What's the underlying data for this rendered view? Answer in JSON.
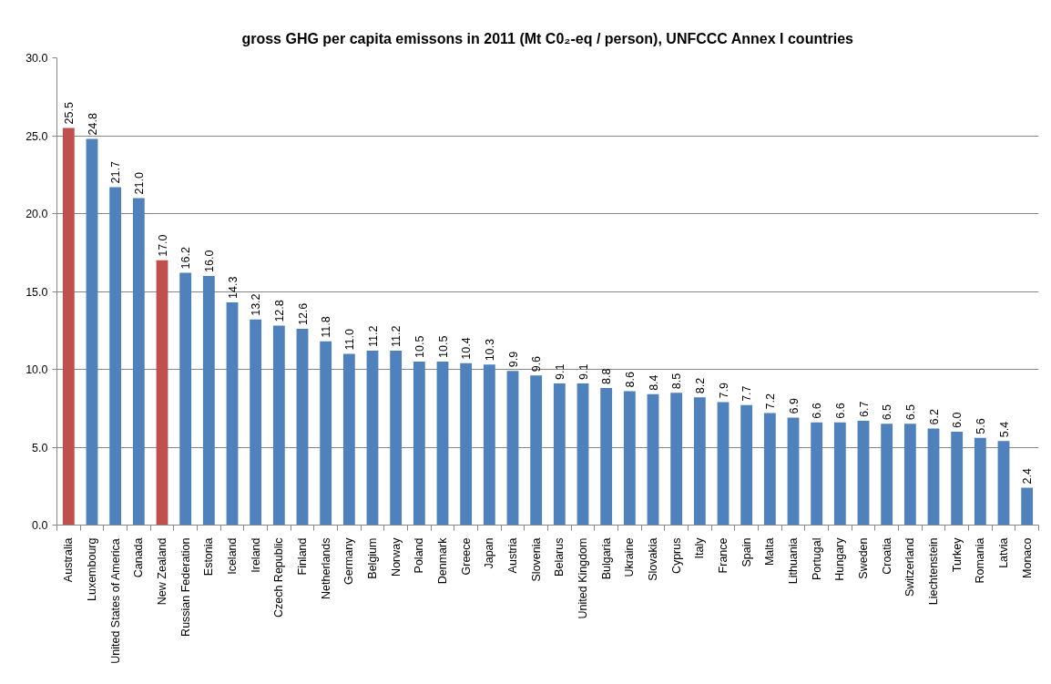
{
  "chart_data": {
    "type": "bar",
    "title": "gross GHG per capita emissons in 2011 (Mt C0₂-eq / person), UNFCCC Annex I countries",
    "categories": [
      "Australia",
      "Luxembourg",
      "United States of America",
      "Canada",
      "New Zealand",
      "Russian Federation",
      "Estonia",
      "Iceland",
      "Ireland",
      "Czech Republic",
      "Finland",
      "Netherlands",
      "Germany",
      "Belgium",
      "Norway",
      "Poland",
      "Denmark",
      "Greece",
      "Japan",
      "Austria",
      "Slovenia",
      "Belarus",
      "United Kingdom",
      "Bulgaria",
      "Ukraine",
      "Slovakia",
      "Cyprus",
      "Italy",
      "France",
      "Spain",
      "Malta",
      "Lithuania",
      "Portugal",
      "Hungary",
      "Sweden",
      "Croatia",
      "Switzerland",
      "Liechtenstein",
      "Turkey",
      "Romania",
      "Latvia",
      "Monaco"
    ],
    "values": [
      25.5,
      24.8,
      21.7,
      21,
      17,
      16.2,
      16,
      14.3,
      13.2,
      12.8,
      12.6,
      11.8,
      11,
      11.2,
      11.2,
      10.5,
      10.5,
      10.4,
      10.3,
      9.9,
      9.6,
      9.1,
      9.1,
      8.8,
      8.6,
      8.4,
      8.5,
      8.2,
      7.9,
      7.7,
      7.2,
      6.9,
      6.6,
      6.6,
      6.7,
      6.5,
      6.5,
      6.2,
      6,
      5.6,
      5.4,
      2.4
    ],
    "value_labels": [
      "25.5",
      "24.8",
      "21.7",
      "21.0",
      "17.0",
      "16.2",
      "16.0",
      "14.3",
      "13.2",
      "12.8",
      "12.6",
      "11.8",
      "11.0",
      "11.2",
      "11.2",
      "10.5",
      "10.5",
      "10.4",
      "10.3",
      "9.9",
      "9.6",
      "9.1",
      "9.1",
      "8.8",
      "8.6",
      "8.4",
      "8.5",
      "8.2",
      "7.9",
      "7.7",
      "7.2",
      "6.9",
      "6.6",
      "6.6",
      "6.7",
      "6.5",
      "6.5",
      "6.2",
      "6.0",
      "5.6",
      "5.4",
      "2.4"
    ],
    "colors": [
      "#c0504d",
      "#4f81bd",
      "#4f81bd",
      "#4f81bd",
      "#c0504d",
      "#4f81bd",
      "#4f81bd",
      "#4f81bd",
      "#4f81bd",
      "#4f81bd",
      "#4f81bd",
      "#4f81bd",
      "#4f81bd",
      "#4f81bd",
      "#4f81bd",
      "#4f81bd",
      "#4f81bd",
      "#4f81bd",
      "#4f81bd",
      "#4f81bd",
      "#4f81bd",
      "#4f81bd",
      "#4f81bd",
      "#4f81bd",
      "#4f81bd",
      "#4f81bd",
      "#4f81bd",
      "#4f81bd",
      "#4f81bd",
      "#4f81bd",
      "#4f81bd",
      "#4f81bd",
      "#4f81bd",
      "#4f81bd",
      "#4f81bd",
      "#4f81bd",
      "#4f81bd",
      "#4f81bd",
      "#4f81bd",
      "#4f81bd",
      "#4f81bd",
      "#4f81bd"
    ],
    "ylim": [
      0,
      30
    ],
    "yticks": [
      {
        "value": 0,
        "label": "0.0"
      },
      {
        "value": 5,
        "label": "5.0"
      },
      {
        "value": 10,
        "label": "10.0"
      },
      {
        "value": 15,
        "label": "15.0"
      },
      {
        "value": 20,
        "label": "20.0"
      },
      {
        "value": 25,
        "label": "25.0"
      },
      {
        "value": 30,
        "label": "30.0"
      }
    ],
    "grid": "y"
  }
}
